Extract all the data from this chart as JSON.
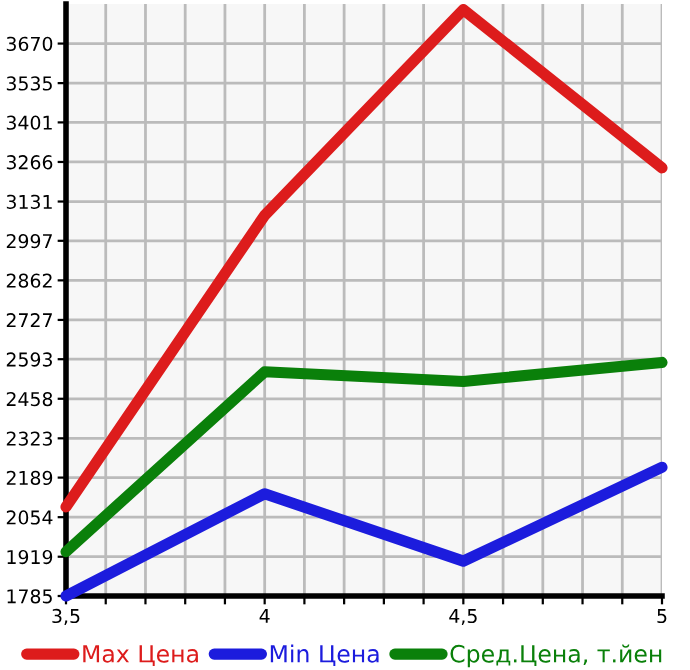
{
  "chart_data": {
    "type": "line",
    "x": [
      3.5,
      4,
      4.5,
      5
    ],
    "series": [
      {
        "name": "Max Цена",
        "color": "#dd1c1c",
        "values": [
          2089,
          3084,
          3786,
          3246
        ]
      },
      {
        "name": "Min Цена",
        "color": "#1c1cdd",
        "values": [
          1785,
          2134,
          1904,
          2224
        ]
      },
      {
        "name": "Сред.Цена, т.йен",
        "color": "#0a800a",
        "values": [
          1936,
          2550,
          2517,
          2582
        ]
      }
    ],
    "xlim": [
      3.5,
      5
    ],
    "xticks": [
      {
        "value": 3.5,
        "label": "3,5"
      },
      {
        "value": 3.6,
        "label": null
      },
      {
        "value": 3.7,
        "label": null
      },
      {
        "value": 3.8,
        "label": null
      },
      {
        "value": 3.9,
        "label": null
      },
      {
        "value": 4,
        "label": "4"
      },
      {
        "value": 4.1,
        "label": null
      },
      {
        "value": 4.2,
        "label": null
      },
      {
        "value": 4.3,
        "label": null
      },
      {
        "value": 4.4,
        "label": null
      },
      {
        "value": 4.5,
        "label": "4,5"
      },
      {
        "value": 4.6,
        "label": null
      },
      {
        "value": 4.7,
        "label": null
      },
      {
        "value": 4.8,
        "label": null
      },
      {
        "value": 4.9,
        "label": null
      },
      {
        "value": 5,
        "label": "5"
      }
    ],
    "ylim": [
      1785,
      3805
    ],
    "yticks": [
      1785,
      1919,
      2054,
      2189,
      2323,
      2458,
      2593,
      2727,
      2862,
      2997,
      3131,
      3266,
      3401,
      3535,
      3670
    ],
    "grid": true,
    "legend": "bottom",
    "marker": "none",
    "line_style": "solid"
  }
}
